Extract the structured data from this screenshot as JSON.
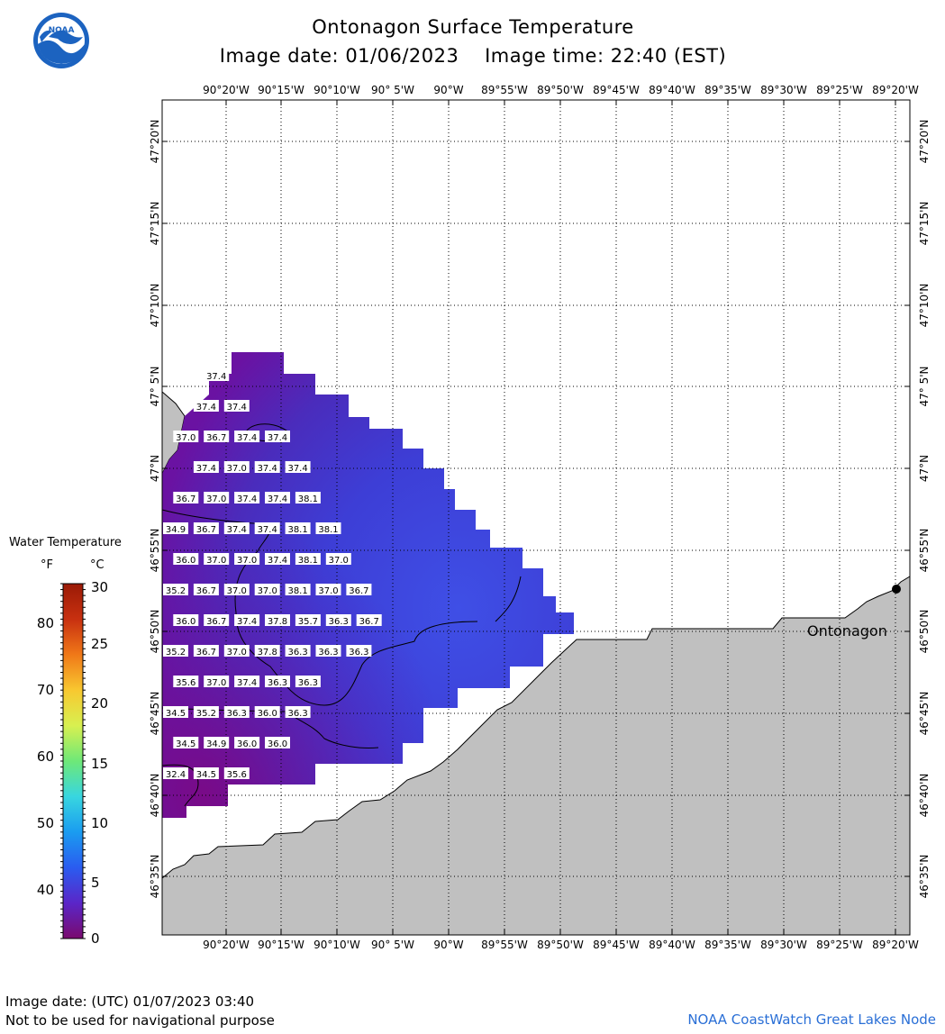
{
  "header": {
    "title": "Ontonagon Surface Temperature",
    "date_label": "Image date: 01/06/2023",
    "time_label": "Image time: 22:40 (EST)"
  },
  "logo": {
    "text": "NOAA"
  },
  "map": {
    "lon_labels": [
      "90°20'W",
      "90°15'W",
      "90°10'W",
      "90° 5'W",
      "90°W",
      "89°55'W",
      "89°50'W",
      "89°45'W",
      "89°40'W",
      "89°35'W",
      "89°30'W",
      "89°25'W",
      "89°20'W"
    ],
    "lat_labels": [
      "47°20'N",
      "47°15'N",
      "47°10'N",
      "47° 5'N",
      "47°N",
      "46°55'N",
      "46°50'N",
      "46°45'N",
      "46°40'N",
      "46°35'N"
    ],
    "place_label": "Ontonagon",
    "land_color": "#c0c0c0",
    "water_background": "#ffffff",
    "temperature_readings": [
      {
        "value": "37.4",
        "row": 0,
        "col": 4
      },
      {
        "value": "37.4",
        "row": 1,
        "col": 3
      },
      {
        "value": "37.4",
        "row": 1,
        "col": 6
      },
      {
        "value": "37.0",
        "row": 2,
        "col": 1
      },
      {
        "value": "36.7",
        "row": 2,
        "col": 4
      },
      {
        "value": "37.4",
        "row": 2,
        "col": 7
      },
      {
        "value": "37.4",
        "row": 2,
        "col": 10
      },
      {
        "value": "37.4",
        "row": 3,
        "col": 3
      },
      {
        "value": "37.0",
        "row": 3,
        "col": 6
      },
      {
        "value": "37.4",
        "row": 3,
        "col": 9
      },
      {
        "value": "37.4",
        "row": 3,
        "col": 12
      },
      {
        "value": "36.7",
        "row": 4,
        "col": 1
      },
      {
        "value": "37.0",
        "row": 4,
        "col": 4
      },
      {
        "value": "37.4",
        "row": 4,
        "col": 7
      },
      {
        "value": "37.4",
        "row": 4,
        "col": 10
      },
      {
        "value": "38.1",
        "row": 4,
        "col": 13
      },
      {
        "value": "34.9",
        "row": 5,
        "col": 0
      },
      {
        "value": "36.7",
        "row": 5,
        "col": 3
      },
      {
        "value": "37.4",
        "row": 5,
        "col": 6
      },
      {
        "value": "37.4",
        "row": 5,
        "col": 9
      },
      {
        "value": "38.1",
        "row": 5,
        "col": 12
      },
      {
        "value": "38.1",
        "row": 5,
        "col": 15
      },
      {
        "value": "36.0",
        "row": 6,
        "col": 1
      },
      {
        "value": "37.0",
        "row": 6,
        "col": 4
      },
      {
        "value": "37.0",
        "row": 6,
        "col": 7
      },
      {
        "value": "37.4",
        "row": 6,
        "col": 10
      },
      {
        "value": "38.1",
        "row": 6,
        "col": 13
      },
      {
        "value": "37.0",
        "row": 6,
        "col": 16
      },
      {
        "value": "35.2",
        "row": 7,
        "col": 0
      },
      {
        "value": "36.7",
        "row": 7,
        "col": 3
      },
      {
        "value": "37.0",
        "row": 7,
        "col": 6
      },
      {
        "value": "37.0",
        "row": 7,
        "col": 9
      },
      {
        "value": "38.1",
        "row": 7,
        "col": 12
      },
      {
        "value": "37.0",
        "row": 7,
        "col": 15
      },
      {
        "value": "36.7",
        "row": 7,
        "col": 18
      },
      {
        "value": "36.0",
        "row": 8,
        "col": 1
      },
      {
        "value": "36.7",
        "row": 8,
        "col": 4
      },
      {
        "value": "37.4",
        "row": 8,
        "col": 7
      },
      {
        "value": "37.8",
        "row": 8,
        "col": 10
      },
      {
        "value": "35.7",
        "row": 8,
        "col": 13
      },
      {
        "value": "36.3",
        "row": 8,
        "col": 16
      },
      {
        "value": "36.7",
        "row": 8,
        "col": 19
      },
      {
        "value": "35.2",
        "row": 9,
        "col": 0
      },
      {
        "value": "36.7",
        "row": 9,
        "col": 3
      },
      {
        "value": "37.0",
        "row": 9,
        "col": 6
      },
      {
        "value": "37.8",
        "row": 9,
        "col": 9
      },
      {
        "value": "36.3",
        "row": 9,
        "col": 12
      },
      {
        "value": "36.3",
        "row": 9,
        "col": 15
      },
      {
        "value": "36.3",
        "row": 9,
        "col": 18
      },
      {
        "value": "35.6",
        "row": 10,
        "col": 1
      },
      {
        "value": "37.0",
        "row": 10,
        "col": 4
      },
      {
        "value": "37.4",
        "row": 10,
        "col": 7
      },
      {
        "value": "36.3",
        "row": 10,
        "col": 10
      },
      {
        "value": "36.3",
        "row": 10,
        "col": 13
      },
      {
        "value": "34.5",
        "row": 11,
        "col": 0
      },
      {
        "value": "35.2",
        "row": 11,
        "col": 3
      },
      {
        "value": "36.3",
        "row": 11,
        "col": 6
      },
      {
        "value": "36.0",
        "row": 11,
        "col": 9
      },
      {
        "value": "36.3",
        "row": 11,
        "col": 12
      },
      {
        "value": "34.5",
        "row": 12,
        "col": 1
      },
      {
        "value": "34.9",
        "row": 12,
        "col": 4
      },
      {
        "value": "36.0",
        "row": 12,
        "col": 7
      },
      {
        "value": "36.0",
        "row": 12,
        "col": 10
      },
      {
        "value": "32.4",
        "row": 13,
        "col": 0
      },
      {
        "value": "34.5",
        "row": 13,
        "col": 3
      },
      {
        "value": "35.6",
        "row": 13,
        "col": 6
      }
    ]
  },
  "legend": {
    "title": "Water Temperature",
    "unit_f": "°F",
    "unit_c": "°C",
    "f_ticks": [
      "80",
      "70",
      "60",
      "50",
      "40"
    ],
    "c_ticks": [
      "30",
      "25",
      "20",
      "15",
      "10",
      "5",
      "0"
    ],
    "scale_colors": [
      "#7a0a6e",
      "#5a26c8",
      "#2a5cf0",
      "#1a9cf0",
      "#38d6e0",
      "#6ee878",
      "#d8f050",
      "#f8c830",
      "#f07818",
      "#c83010",
      "#9a1a06"
    ]
  },
  "footer": {
    "utc_date": "Image date: (UTC) 01/07/2023  03:40",
    "disclaimer": "Not to be used for navigational purpose",
    "credit": "NOAA CoastWatch Great Lakes Node"
  }
}
